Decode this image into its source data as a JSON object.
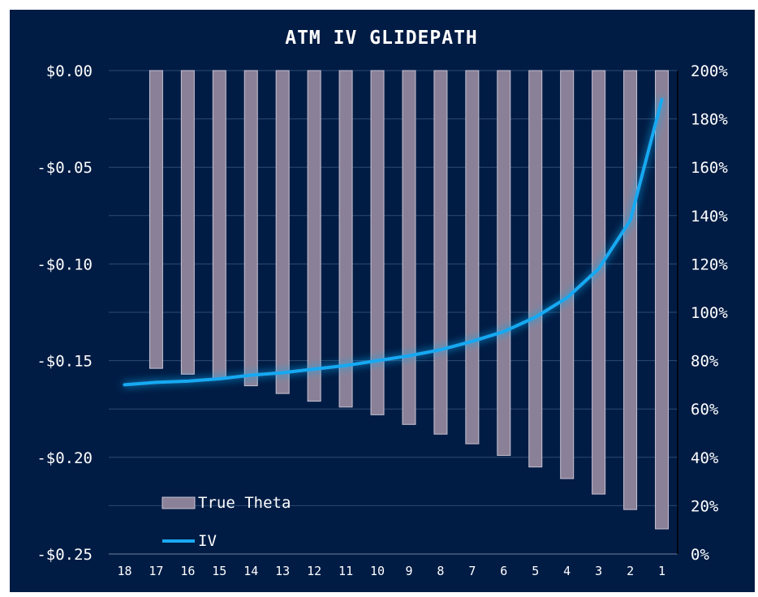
{
  "chart_data": {
    "type": "bar",
    "title": "ATM IV GLIDEPATH",
    "categories": [
      "18",
      "17",
      "16",
      "15",
      "14",
      "13",
      "12",
      "11",
      "10",
      "9",
      "8",
      "7",
      "6",
      "5",
      "4",
      "3",
      "2",
      "1"
    ],
    "series": [
      {
        "name": "True Theta",
        "type": "bar",
        "axis": "left",
        "values": [
          null,
          -0.154,
          -0.157,
          -0.159,
          -0.163,
          -0.167,
          -0.171,
          -0.174,
          -0.178,
          -0.183,
          -0.188,
          -0.193,
          -0.199,
          -0.205,
          -0.211,
          -0.219,
          -0.227,
          -0.237
        ]
      },
      {
        "name": "IV",
        "type": "line",
        "axis": "right",
        "values": [
          70,
          71,
          71.5,
          72.5,
          74,
          75,
          76.5,
          78,
          80,
          82,
          84.5,
          88,
          92,
          98,
          106,
          118,
          138,
          188
        ]
      }
    ],
    "y_left": {
      "range": [
        -0.25,
        0
      ],
      "ticks": [
        0,
        -0.05,
        -0.1,
        -0.15,
        -0.2,
        -0.25
      ],
      "tick_labels": [
        "$0.00",
        "-$0.05",
        "-$0.10",
        "-$0.15",
        "-$0.20",
        "-$0.25"
      ]
    },
    "y_right": {
      "range": [
        0,
        200
      ],
      "ticks": [
        200,
        180,
        160,
        140,
        120,
        100,
        80,
        60,
        40,
        20,
        0
      ],
      "tick_labels": [
        "200%",
        "180%",
        "160%",
        "140%",
        "120%",
        "100%",
        "80%",
        "60%",
        "40%",
        "20%",
        "0%"
      ]
    },
    "grid": true,
    "legend": "bottom-left",
    "colors": {
      "background": "#001c44",
      "bar_fill": "#8a8198",
      "bar_stroke": "#c9c2d4",
      "line": "#19a9f2",
      "grid": "#2e4a72",
      "text": "#ffffff"
    }
  }
}
